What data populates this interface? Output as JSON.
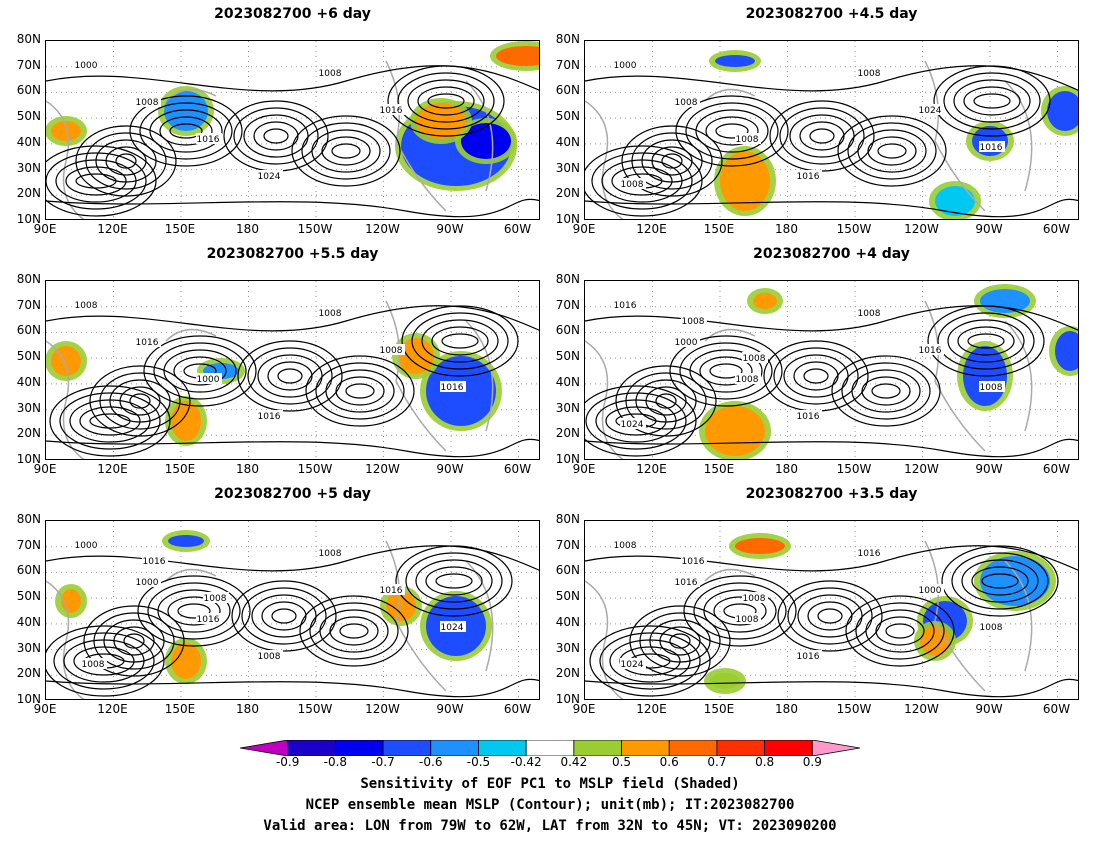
{
  "panels": [
    {
      "title": "2023082700  +6 day",
      "contours": [
        "1000",
        "1008",
        "1016",
        "1024",
        "1008",
        "1016"
      ]
    },
    {
      "title": "2023082700  +4.5  day",
      "contours": [
        "1000",
        "1008",
        "1008",
        "1016",
        "1008",
        "1024",
        "1016",
        "1008"
      ]
    },
    {
      "title": "2023082700  +5.5  day",
      "contours": [
        "1008",
        "1016",
        "1000",
        "1016",
        "1008",
        "1008",
        "1016"
      ]
    },
    {
      "title": "2023082700  +4  day",
      "contours": [
        "1016",
        "1000",
        "1008",
        "1016",
        "1008",
        "1016",
        "1008",
        "1024",
        "1008",
        "1008"
      ]
    },
    {
      "title": "2023082700  +5  day",
      "contours": [
        "1000",
        "1000",
        "1016",
        "1008",
        "1008",
        "1016",
        "1024",
        "1008",
        "1016",
        "1008"
      ]
    },
    {
      "title": "2023082700  +3.5  day",
      "contours": [
        "1008",
        "1016",
        "1008",
        "1016",
        "1016",
        "1000",
        "1008",
        "1024",
        "1016",
        "1008"
      ]
    }
  ],
  "lat_labels": [
    "80N",
    "70N",
    "60N",
    "50N",
    "40N",
    "30N",
    "20N",
    "10N"
  ],
  "lon_labels": [
    "90E",
    "120E",
    "150E",
    "180",
    "150W",
    "120W",
    "90W",
    "60W"
  ],
  "colorbar": {
    "labels": [
      "-0.9",
      "-0.8",
      "-0.7",
      "-0.6",
      "-0.5",
      "-0.42",
      "0.42",
      "0.5",
      "0.6",
      "0.7",
      "0.8",
      "0.9"
    ],
    "colors": [
      "#c000c0",
      "#1a00c8",
      "#0000f0",
      "#1e4cff",
      "#1e90ff",
      "#00c8f0",
      "#ffffff",
      "#9acd32",
      "#ff9900",
      "#ff6a00",
      "#ff3000",
      "#ff0000",
      "#ff99cc"
    ]
  },
  "footer": {
    "line1": "Sensitivity of EOF PC1 to MSLP field (Shaded)",
    "line2": "NCEP ensemble mean MSLP (Contour); unit(mb); IT:2023082700",
    "line3": "Valid area: LON from 79W to 62W, LAT from 32N to 45N; VT: 2023090200"
  }
}
